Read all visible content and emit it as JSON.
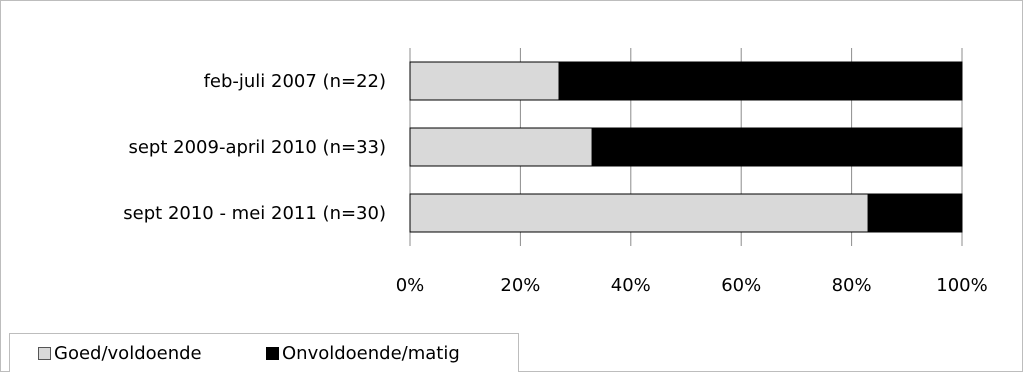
{
  "chart_data": {
    "type": "bar",
    "orientation": "horizontal",
    "stacked": "percent",
    "categories": [
      "feb-juli 2007 (n=22)",
      "sept 2009-april 2010 (n=33)",
      "sept 2010 - mei 2011 (n=30)"
    ],
    "series": [
      {
        "name": "Goed/voldoende",
        "values": [
          27,
          33,
          83
        ],
        "color": "#d9d9d9"
      },
      {
        "name": "Onvoldoende/matig",
        "values": [
          73,
          67,
          17
        ],
        "color": "#000000"
      }
    ],
    "x_ticks": [
      "0%",
      "20%",
      "40%",
      "60%",
      "80%",
      "100%"
    ],
    "xlim": [
      0,
      100
    ],
    "grid": true,
    "legend_position": "bottom"
  }
}
